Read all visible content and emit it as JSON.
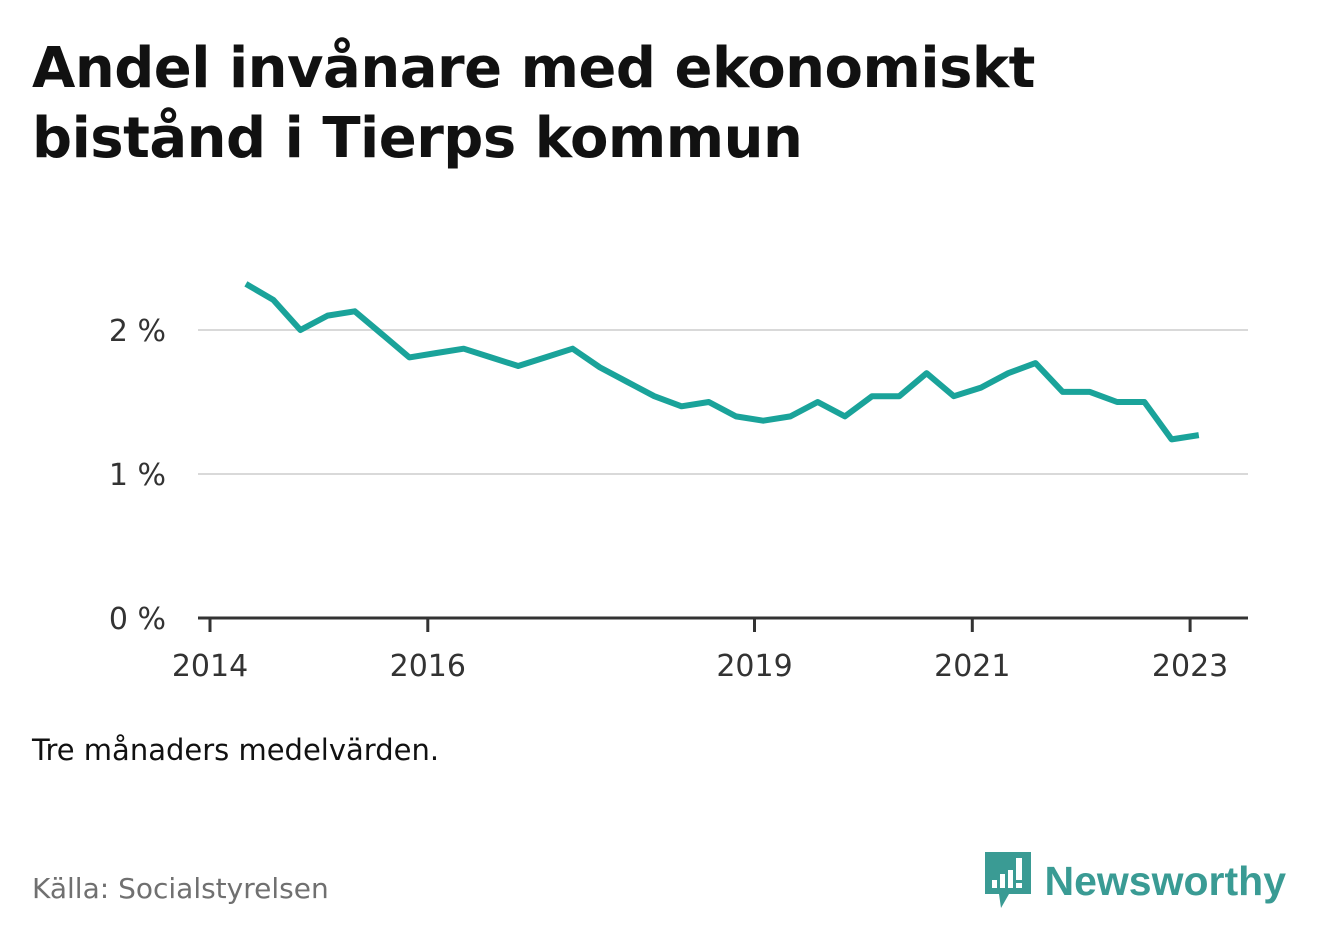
{
  "title": "Andel invånare med ekonomiskt bistånd i Tierps kommun",
  "note": "Tre månaders medelvärden.",
  "source": "Källa: Socialstyrelsen",
  "brand": {
    "name": "Newsworthy",
    "icon": "newsworthy-logo-icon",
    "color": "#3a9b94"
  },
  "colors": {
    "line": "#1aa39a",
    "grid": "#d9d9d9",
    "axis": "#333333"
  },
  "chart_data": {
    "type": "line",
    "title": "Andel invånare med ekonomiskt bistånd i Tierps kommun",
    "xlabel": "",
    "ylabel": "",
    "x_ticks": [
      "2014",
      "2016",
      "2019",
      "2021",
      "2023"
    ],
    "y_ticks": [
      "0 %",
      "1 %",
      "2 %"
    ],
    "ylim": [
      0,
      2.5
    ],
    "xlim": [
      2014.0,
      2023.58
    ],
    "grid": true,
    "series": [
      {
        "x": [
          2014.33,
          2014.58,
          2014.83,
          2015.08,
          2015.33,
          2015.58,
          2015.83,
          2016.08,
          2016.33,
          2016.58,
          2016.83,
          2017.08,
          2017.33,
          2017.58,
          2017.83,
          2018.08,
          2018.33,
          2018.58,
          2018.83,
          2019.08,
          2019.33,
          2019.58,
          2019.83,
          2020.08,
          2020.33,
          2020.58,
          2020.83,
          2021.08,
          2021.33,
          2021.58,
          2021.83,
          2022.08,
          2022.33,
          2022.58,
          2022.83,
          2023.08
        ],
        "values": [
          2.32,
          2.21,
          2.0,
          2.1,
          2.13,
          1.97,
          1.81,
          1.84,
          1.87,
          1.81,
          1.75,
          1.81,
          1.87,
          1.74,
          1.64,
          1.54,
          1.47,
          1.5,
          1.4,
          1.37,
          1.4,
          1.5,
          1.4,
          1.54,
          1.54,
          1.7,
          1.54,
          1.6,
          1.7,
          1.77,
          1.57,
          1.57,
          1.5,
          1.5,
          1.24,
          1.27
        ]
      }
    ]
  }
}
